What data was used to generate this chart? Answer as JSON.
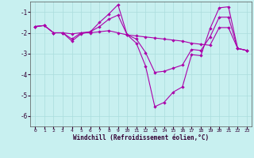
{
  "xlabel": "Windchill (Refroidissement éolien,°C)",
  "background_color": "#c8f0f0",
  "line_color": "#aa00aa",
  "grid_color": "#aadddd",
  "hours": [
    0,
    1,
    2,
    3,
    4,
    5,
    6,
    7,
    8,
    9,
    10,
    11,
    12,
    13,
    14,
    15,
    16,
    17,
    18,
    19,
    20,
    21,
    22,
    23
  ],
  "series": [
    [
      -1.7,
      -1.65,
      -2.0,
      -2.0,
      -2.4,
      -2.05,
      -1.95,
      -1.5,
      -1.1,
      -0.65,
      -2.1,
      -2.5,
      -3.6,
      -5.55,
      -5.35,
      -4.85,
      -4.6,
      -3.05,
      -3.1,
      -1.8,
      -0.8,
      -0.75,
      -2.75,
      -2.85
    ],
    [
      -1.7,
      -1.65,
      -2.0,
      -2.0,
      -2.05,
      -2.0,
      -2.0,
      -1.95,
      -1.9,
      -2.0,
      -2.1,
      -2.15,
      -2.2,
      -2.25,
      -2.3,
      -2.35,
      -2.4,
      -2.5,
      -2.55,
      -2.6,
      -1.75,
      -1.75,
      -2.75,
      -2.85
    ],
    [
      -1.7,
      -1.65,
      -2.0,
      -2.0,
      -2.3,
      -2.0,
      -1.95,
      -1.7,
      -1.35,
      -1.15,
      -2.1,
      -2.3,
      -2.95,
      -3.9,
      -3.85,
      -3.7,
      -3.55,
      -2.8,
      -2.85,
      -2.2,
      -1.25,
      -1.25,
      -2.75,
      -2.85
    ]
  ],
  "ylim": [
    -6.5,
    -0.5
  ],
  "xlim": [
    -0.5,
    23.5
  ],
  "yticks": [
    -6,
    -5,
    -4,
    -3,
    -2,
    -1
  ],
  "xticks": [
    0,
    1,
    2,
    3,
    4,
    5,
    6,
    7,
    8,
    9,
    10,
    11,
    12,
    13,
    14,
    15,
    16,
    17,
    18,
    19,
    20,
    21,
    22,
    23
  ],
  "figsize": [
    3.2,
    2.0
  ],
  "dpi": 100
}
